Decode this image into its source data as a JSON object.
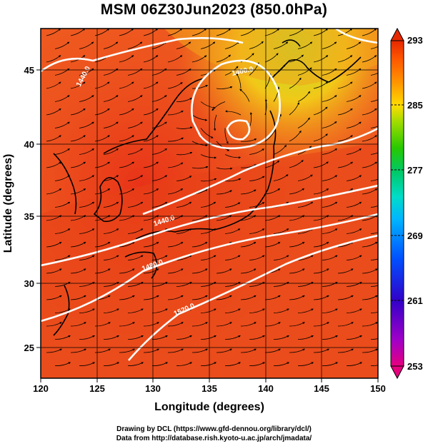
{
  "title": "MSM 06Z30Jun2023 (850.0hPa)",
  "x_axis": {
    "label": "Longitude (degrees)",
    "range": [
      120,
      150
    ],
    "ticks": [
      "120",
      "125",
      "130",
      "135",
      "140",
      "145",
      "150"
    ]
  },
  "y_axis": {
    "label": "Latitude  (degrees)",
    "range": [
      22.4,
      47.6
    ],
    "ticks": [
      "25",
      "30",
      "35",
      "40",
      "45"
    ]
  },
  "colorbar": {
    "range": [
      253,
      293
    ],
    "ticks": [
      "293",
      "285",
      "277",
      "269",
      "261",
      "253"
    ],
    "colors": [
      "#e6007e",
      "#a000c8",
      "#3200c8",
      "#0050ff",
      "#00b4ff",
      "#00dcc8",
      "#00c864",
      "#28c800",
      "#a0dc00",
      "#ffdc00",
      "#ff9600",
      "#ff5a00",
      "#e62800"
    ]
  },
  "contours": [
    {
      "label": "1440.0"
    },
    {
      "label": "1480.0"
    },
    {
      "label": "1520.0"
    },
    {
      "label": "1440.0"
    },
    {
      "label": "1400.0"
    }
  ],
  "credits": {
    "line1": "Drawing by DCL (https://www.gfd-dennou.org/library/dcl/)",
    "line2": "Data from http://database.rish.kyoto-u.ac.jp/arch/jmadata/"
  }
}
